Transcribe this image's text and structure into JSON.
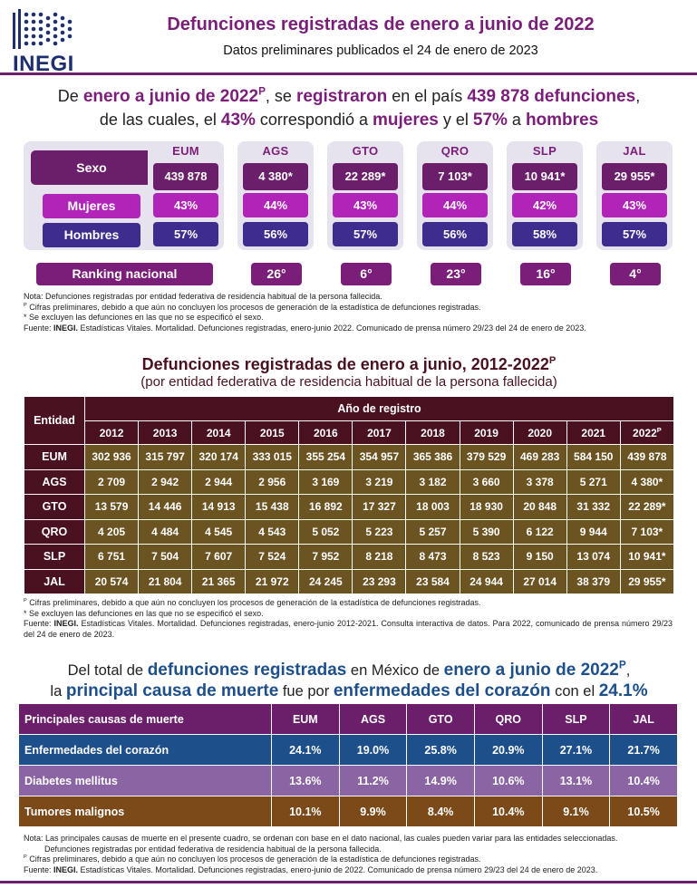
{
  "brand": {
    "logo_text": "INEGI",
    "primary": "#6b1f6b",
    "accent": "#b024b8",
    "men": "#3e2d8e",
    "blue": "#1d4f8a",
    "brown": "#6b5421"
  },
  "header": {
    "title": "Defunciones registradas de enero a junio de 2022",
    "subtitle": "Datos preliminares publicados el 24 de enero de 2023"
  },
  "summary": {
    "l1_a": "De ",
    "l1_period": "enero a junio de 2022",
    "l1_sup": "P",
    "l1_b": ", se ",
    "l1_registered": "registraron",
    "l1_c": " en el país ",
    "l1_total": "439 878 defunciones",
    "l1_d": ",",
    "l2_a": "de las cuales, el ",
    "l2_pct_w": "43%",
    "l2_b": " correspondió a ",
    "l2_women": "mujeres",
    "l2_c": " y el ",
    "l2_pct_m": "57%",
    "l2_d": " a ",
    "l2_men": "hombres"
  },
  "sex_table": {
    "label_sexo": "Sexo",
    "label_mujeres": "Mujeres",
    "label_hombres": "Hombres",
    "label_ranking": "Ranking nacional",
    "entities": [
      {
        "code": "EUM",
        "total": "439 878",
        "mujeres": "43%",
        "hombres": "57%",
        "rank": ""
      },
      {
        "code": "AGS",
        "total": "4 380*",
        "mujeres": "44%",
        "hombres": "56%",
        "rank": "26°"
      },
      {
        "code": "GTO",
        "total": "22 289*",
        "mujeres": "43%",
        "hombres": "57%",
        "rank": "6°"
      },
      {
        "code": "QRO",
        "total": "7 103*",
        "mujeres": "44%",
        "hombres": "56%",
        "rank": "23°"
      },
      {
        "code": "SLP",
        "total": "10 941*",
        "mujeres": "42%",
        "hombres": "58%",
        "rank": "16°"
      },
      {
        "code": "JAL",
        "total": "29 955*",
        "mujeres": "43%",
        "hombres": "57%",
        "rank": "4°"
      }
    ]
  },
  "notes1": {
    "n1": "Nota: Defunciones registradas por entidad federativa de residencia habitual de la persona fallecida.",
    "n2_sup": "P",
    "n2": " Cifras preliminares, debido a que aún no concluyen los procesos de generación de la estadística de defunciones registradas.",
    "n3": "* Se excluyen las defunciones en las que no se especificó el sexo.",
    "n4_a": "Fuente: ",
    "n4_b": "INEGI.",
    "n4_c": " Estadísticas Vitales. Mortalidad. Defunciones registradas, enero-junio 2022. Comunicado de prensa número 29/23 del 24 de enero de 2023."
  },
  "yearly": {
    "title": "Defunciones registradas de enero a junio, 2012-2022",
    "title_sup": "P",
    "subtitle": "(por entidad federativa de residencia habitual de la persona fallecida)",
    "col_entity": "Entidad",
    "col_group": "Año de registro",
    "years": [
      "2012",
      "2013",
      "2014",
      "2015",
      "2016",
      "2017",
      "2018",
      "2019",
      "2020",
      "2021",
      "2022"
    ],
    "last_year_sup": "P",
    "rows": [
      {
        "entity": "EUM",
        "values": [
          "302 936",
          "315 797",
          "320 174",
          "333 015",
          "355 254",
          "354 957",
          "365 386",
          "379 529",
          "469 283",
          "584 150",
          "439 878"
        ]
      },
      {
        "entity": "AGS",
        "values": [
          "2 709",
          "2 942",
          "2 944",
          "2 956",
          "3 169",
          "3 219",
          "3 182",
          "3 660",
          "3 378",
          "5 271",
          "4 380*"
        ]
      },
      {
        "entity": "GTO",
        "values": [
          "13 579",
          "14 446",
          "14 913",
          "15 438",
          "16 892",
          "17 327",
          "18 003",
          "18 930",
          "20 848",
          "31 332",
          "22 289*"
        ]
      },
      {
        "entity": "QRO",
        "values": [
          "4 205",
          "4 484",
          "4 545",
          "4 543",
          "5 052",
          "5 223",
          "5 257",
          "5 390",
          "6 122",
          "9 944",
          "7 103*"
        ]
      },
      {
        "entity": "SLP",
        "values": [
          "6 751",
          "7 504",
          "7 607",
          "7 524",
          "7 952",
          "8 218",
          "8 473",
          "8 523",
          "9 150",
          "13 074",
          "10 941*"
        ]
      },
      {
        "entity": "JAL",
        "values": [
          "20 574",
          "21 804",
          "21 365",
          "21 972",
          "24 245",
          "23 293",
          "23 584",
          "24 944",
          "27 014",
          "38 379",
          "29 955*"
        ]
      }
    ]
  },
  "notes2": {
    "n1_sup": "P",
    "n1": " Cifras preliminares, debido a que aún no concluyen los procesos de generación de la estadística de defunciones registradas.",
    "n2": "* Se excluyen las defunciones en las que no se especificó el sexo.",
    "n3_a": "Fuente: ",
    "n3_b": "INEGI.",
    "n3_c": " Estadísticas Vitales. Mortalidad. Defunciones registradas, enero-junio 2012-2021. Consulta interactiva de datos. Para 2022, comunicado de prensa número 29/23 del 24 de enero de 2023."
  },
  "causes_intro": {
    "l1_a": "Del total de ",
    "l1_b": "defunciones registradas",
    "l1_c": " en México de ",
    "l1_d": "enero a junio de 2022",
    "l1_sup": "P",
    "l1_e": ",",
    "l2_a": "la ",
    "l2_b": "principal causa de muerte",
    "l2_c": " fue por ",
    "l2_d": "enfermedades del corazón",
    "l2_e": " con el ",
    "l2_f": "24.1%"
  },
  "causes": {
    "header": "Principales causas de muerte",
    "columns": [
      "EUM",
      "AGS",
      "GTO",
      "QRO",
      "SLP",
      "JAL"
    ],
    "rows": [
      {
        "name": "Enfermedades del corazón",
        "values": [
          "24.1%",
          "19.0%",
          "25.8%",
          "20.9%",
          "27.1%",
          "21.7%"
        ]
      },
      {
        "name": "Diabetes mellitus",
        "values": [
          "13.6%",
          "11.2%",
          "14.9%",
          "10.6%",
          "13.1%",
          "10.4%"
        ]
      },
      {
        "name": "Tumores malignos",
        "values": [
          "10.1%",
          "9.9%",
          "8.4%",
          "10.4%",
          "9.1%",
          "10.5%"
        ]
      }
    ]
  },
  "notes3": {
    "n1": "Nota: Las principales causas de muerte en el presente cuadro, se ordenan con base en el dato nacional, las cuales pueden variar para las entidades seleccionadas.",
    "n1b": "Defunciones registradas por entidad federativa de residencia habitual de la persona fallecida.",
    "n2_sup": "P",
    "n2": " Cifras preliminares, debido a que aún no concluyen los procesos de generación de la estadística de defunciones registradas.",
    "n3_a": "Fuente: ",
    "n3_b": "INEGI.",
    "n3_c": " Estadísticas Vitales. Mortalidad. Defunciones registradas, enero-junio de 2022. Comunicado de prensa número 29/23 del 24 de enero de 2023."
  }
}
